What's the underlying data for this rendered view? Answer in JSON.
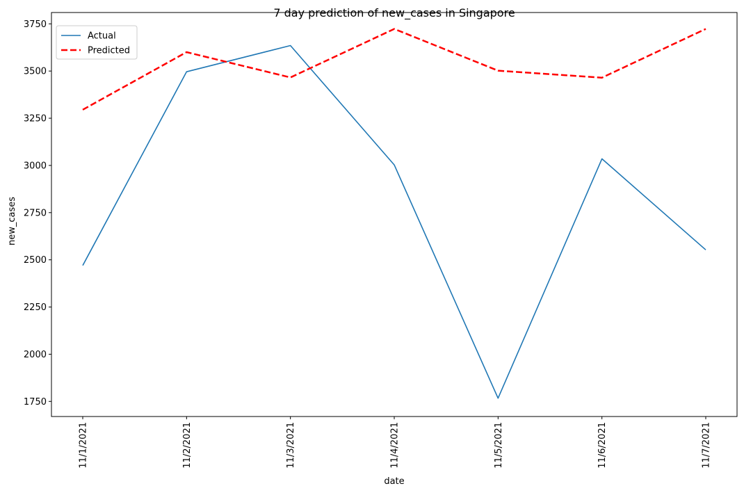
{
  "chart_data": {
    "type": "line",
    "title": "7 day prediction of new_cases in Singapore",
    "xlabel": "date",
    "ylabel": "new_cases",
    "categories": [
      "11/1/2021",
      "11/2/2021",
      "11/3/2021",
      "11/4/2021",
      "11/5/2021",
      "11/6/2021",
      "11/7/2021"
    ],
    "ylim": [
      1670,
      3810
    ],
    "yticks": [
      1750,
      2000,
      2250,
      2500,
      2750,
      3000,
      3250,
      3500,
      3750
    ],
    "grid": false,
    "legend_position": "upper-left",
    "series": [
      {
        "name": "Actual",
        "color": "#1f77b4",
        "style": "solid",
        "values": [
          2470,
          3496,
          3635,
          3003,
          1767,
          3035,
          2553
        ]
      },
      {
        "name": "Predicted",
        "color": "#ff0000",
        "style": "dashed",
        "values": [
          3295,
          3600,
          3466,
          3723,
          3502,
          3465,
          3723
        ]
      }
    ]
  }
}
